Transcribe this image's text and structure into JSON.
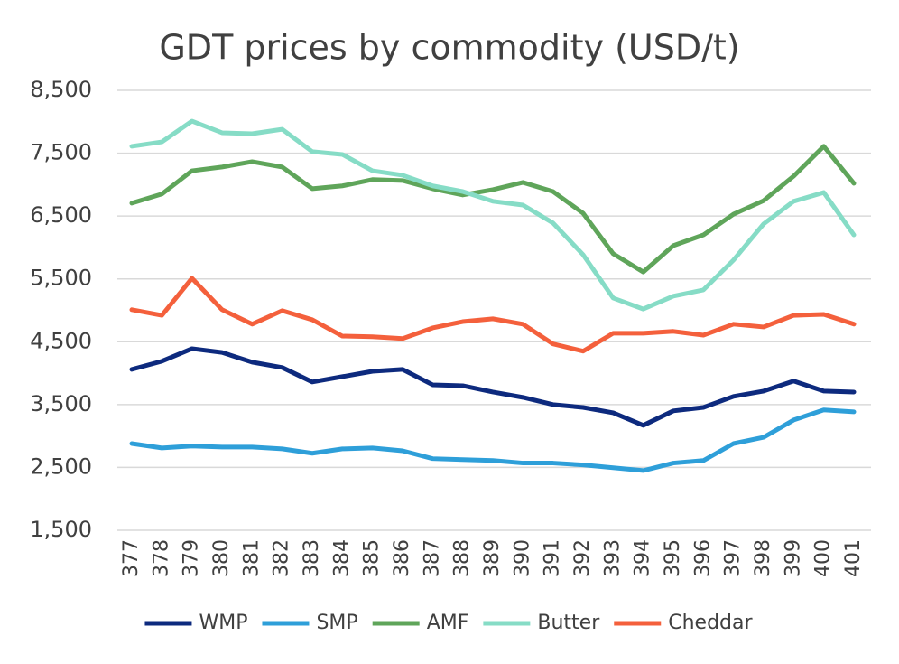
{
  "chart_data": {
    "type": "line",
    "title": "GDT prices by commodity (USD/t)",
    "categories": [
      "377",
      "378",
      "379",
      "380",
      "381",
      "382",
      "383",
      "384",
      "385",
      "386",
      "387",
      "388",
      "389",
      "390",
      "391",
      "392",
      "393",
      "394",
      "395",
      "396",
      "397",
      "398",
      "399",
      "400",
      "401"
    ],
    "series": [
      {
        "name": "WMP",
        "color": "#0d2a7e",
        "values": [
          4060,
          4190,
          4390,
          4330,
          4175,
          4090,
          3860,
          3945,
          4030,
          4060,
          3815,
          3800,
          3700,
          3615,
          3500,
          3455,
          3370,
          3170,
          3400,
          3455,
          3630,
          3715,
          3875,
          3715,
          3700
        ]
      },
      {
        "name": "SMP",
        "color": "#2e9fd9",
        "values": [
          2880,
          2810,
          2840,
          2825,
          2825,
          2795,
          2725,
          2795,
          2810,
          2765,
          2640,
          2625,
          2610,
          2570,
          2570,
          2540,
          2495,
          2450,
          2570,
          2610,
          2880,
          2980,
          3255,
          3415,
          3385
        ]
      },
      {
        "name": "AMF",
        "color": "#5fa55a",
        "values": [
          6705,
          6850,
          7220,
          7280,
          7365,
          7280,
          6935,
          6980,
          7080,
          7065,
          6935,
          6835,
          6920,
          7035,
          6890,
          6545,
          5900,
          5610,
          6030,
          6200,
          6530,
          6745,
          7135,
          7610,
          7020
        ]
      },
      {
        "name": "Butter",
        "color": "#86dcc6",
        "values": [
          7610,
          7680,
          8010,
          7825,
          7810,
          7880,
          7525,
          7480,
          7220,
          7150,
          6980,
          6890,
          6735,
          6675,
          6390,
          5885,
          5195,
          5020,
          5225,
          5325,
          5800,
          6375,
          6735,
          6875,
          6200
        ]
      },
      {
        "name": "Cheddar",
        "color": "#f4603c",
        "values": [
          5010,
          4920,
          5510,
          5010,
          4780,
          4995,
          4850,
          4590,
          4580,
          4550,
          4720,
          4820,
          4865,
          4780,
          4465,
          4350,
          4635,
          4635,
          4665,
          4605,
          4780,
          4735,
          4920,
          4935,
          4780
        ]
      }
    ],
    "ylim": [
      1500,
      8500
    ],
    "yticks": [
      {
        "value": 1500,
        "label": "1,500"
      },
      {
        "value": 2500,
        "label": "2,500"
      },
      {
        "value": 3500,
        "label": "3,500"
      },
      {
        "value": 4500,
        "label": "4,500"
      },
      {
        "value": 5500,
        "label": "5,500"
      },
      {
        "value": 6500,
        "label": "6,500"
      },
      {
        "value": 7500,
        "label": "7,500"
      },
      {
        "value": 8500,
        "label": "8,500"
      }
    ],
    "grid": true,
    "legend": "bottom"
  }
}
